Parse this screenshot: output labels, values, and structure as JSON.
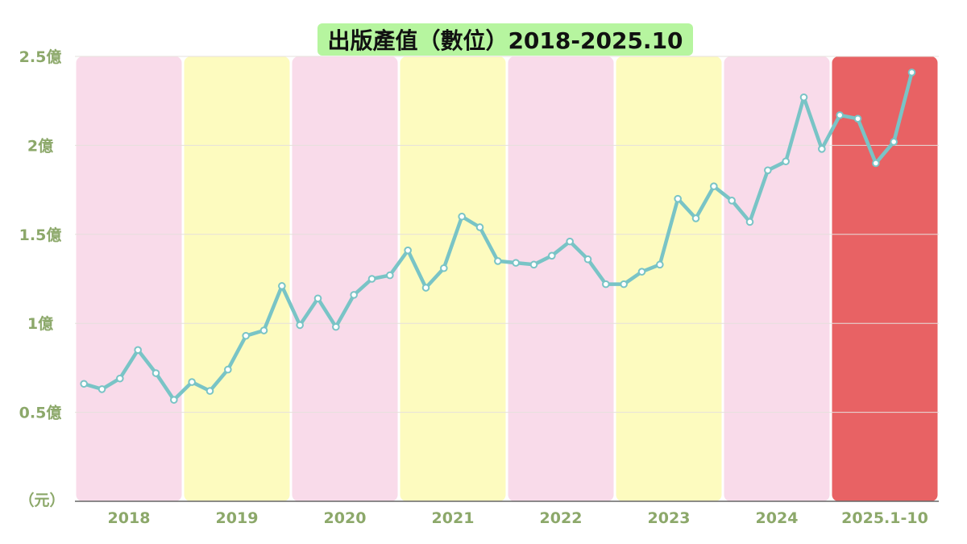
{
  "chart_data": {
    "type": "line",
    "title": "出版產值（數位）2018-2025.10",
    "ylabel": "（元）",
    "ylim": [
      0,
      2.5
    ],
    "y_ticks": [
      {
        "value": 0.5,
        "label": "0.5億"
      },
      {
        "value": 1,
        "label": "1億"
      },
      {
        "value": 1.5,
        "label": "1.5億"
      },
      {
        "value": 2,
        "label": "2億"
      },
      {
        "value": 2.5,
        "label": "2.5億"
      }
    ],
    "grid": true,
    "periods": [
      {
        "label": "2018",
        "count": 6,
        "color": "#f9dbea"
      },
      {
        "label": "2019",
        "count": 6,
        "color": "#fdfbbf"
      },
      {
        "label": "2020",
        "count": 6,
        "color": "#f9dbea"
      },
      {
        "label": "2021",
        "count": 6,
        "color": "#fdfbbf"
      },
      {
        "label": "2022",
        "count": 6,
        "color": "#f9dbea"
      },
      {
        "label": "2023",
        "count": 6,
        "color": "#fdfbbf"
      },
      {
        "label": "2024",
        "count": 6,
        "color": "#f9dbea"
      },
      {
        "label": "2025.1-10",
        "count": 5,
        "color": "#e86264"
      }
    ],
    "series": [
      {
        "values": [
          0.66,
          0.63,
          0.69,
          0.85,
          0.72,
          0.57,
          0.67,
          0.62,
          0.74,
          0.93,
          0.96,
          1.21,
          0.99,
          1.14,
          0.98,
          1.16,
          1.25,
          1.27,
          1.41,
          1.2,
          1.31,
          1.6,
          1.54,
          1.35,
          1.34,
          1.33,
          1.38,
          1.46,
          1.36,
          1.22,
          1.22,
          1.29,
          1.33,
          1.7,
          1.59,
          1.77,
          1.69,
          1.57,
          1.86,
          1.91,
          2.27,
          1.98,
          2.17,
          2.15,
          1.9,
          2.02,
          2.41
        ]
      }
    ]
  },
  "colors": {
    "line": "#79c4c6",
    "marker_fill": "#ffffff",
    "axis_text": "#8ca86a",
    "grid": "#e6e0dc",
    "baseline": "#666666",
    "title_bg": "#b6f59f"
  }
}
